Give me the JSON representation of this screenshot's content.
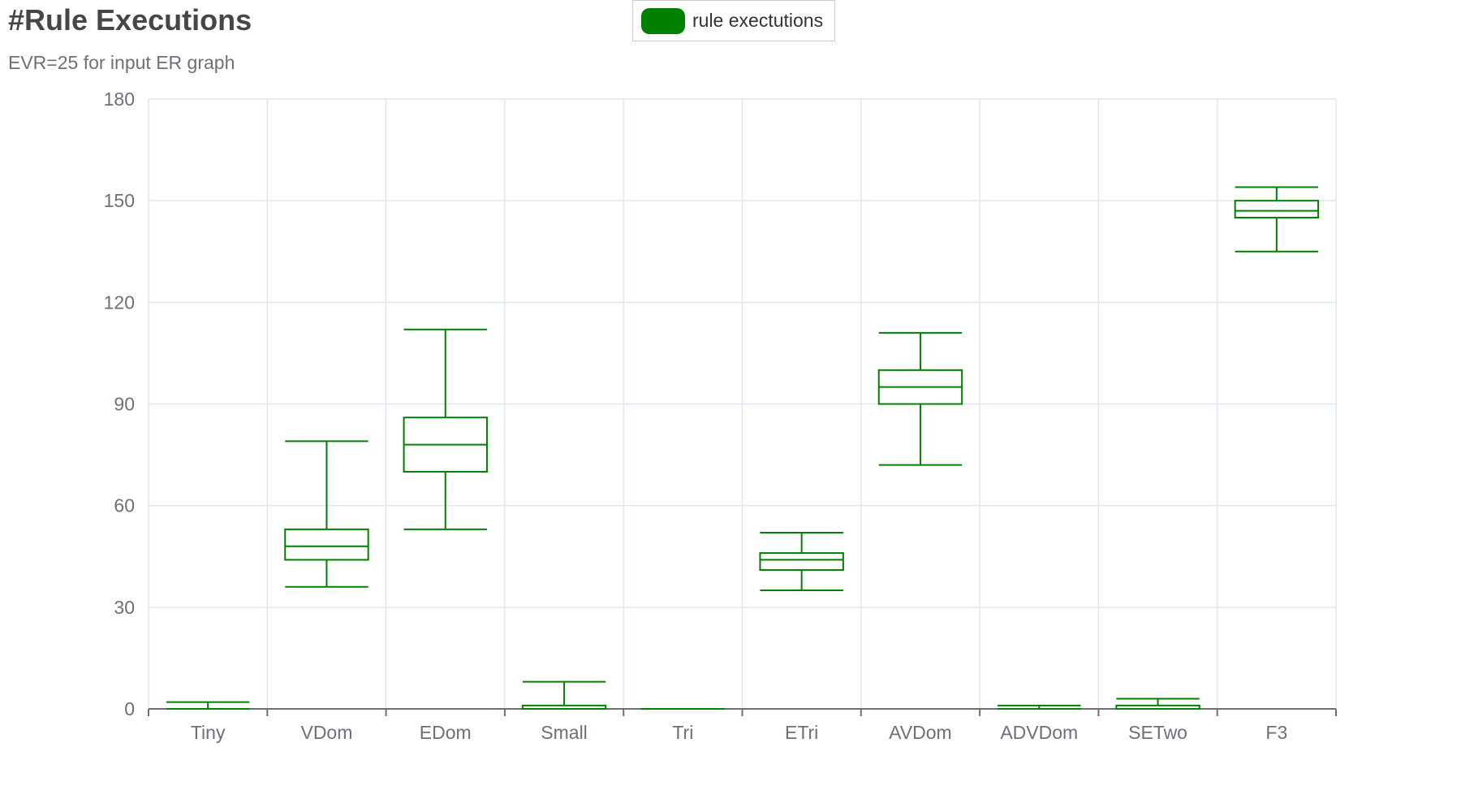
{
  "title": "#Rule Executions",
  "subtitle": "EVR=25 for input ER graph",
  "legend": {
    "label": "rule exectutions",
    "color": "#008000"
  },
  "chart_data": {
    "type": "boxplot",
    "title": "#Rule Executions",
    "subtitle": "EVR=25 for input ER graph",
    "xlabel": "",
    "ylabel": "",
    "ylim": [
      0,
      180
    ],
    "yticks": [
      0,
      30,
      60,
      90,
      120,
      150,
      180
    ],
    "categories": [
      "Tiny",
      "VDom",
      "EDom",
      "Small",
      "Tri",
      "ETri",
      "AVDom",
      "ADVDom",
      "SETwo",
      "F3"
    ],
    "series": [
      {
        "name": "rule exectutions",
        "color": "#008000",
        "boxes": [
          {
            "min": 0,
            "q1": 0,
            "median": 0,
            "q3": 0,
            "max": 2
          },
          {
            "min": 36,
            "q1": 44,
            "median": 48,
            "q3": 53,
            "max": 79
          },
          {
            "min": 53,
            "q1": 70,
            "median": 78,
            "q3": 86,
            "max": 112
          },
          {
            "min": 0,
            "q1": 0,
            "median": 0,
            "q3": 1,
            "max": 8
          },
          {
            "min": 0,
            "q1": 0,
            "median": 0,
            "q3": 0,
            "max": 0
          },
          {
            "min": 35,
            "q1": 41,
            "median": 44,
            "q3": 46,
            "max": 52
          },
          {
            "min": 72,
            "q1": 90,
            "median": 95,
            "q3": 100,
            "max": 111
          },
          {
            "min": 0,
            "q1": 0,
            "median": 0,
            "q3": 0,
            "max": 1
          },
          {
            "min": 0,
            "q1": 0,
            "median": 0,
            "q3": 1,
            "max": 3
          },
          {
            "min": 135,
            "q1": 145,
            "median": 147,
            "q3": 150,
            "max": 154
          }
        ]
      }
    ],
    "grid": true,
    "legend_position": "top-center",
    "colors": {
      "box": "#008000",
      "grid": "#e0e6f1",
      "axis": "#6e7079"
    }
  }
}
